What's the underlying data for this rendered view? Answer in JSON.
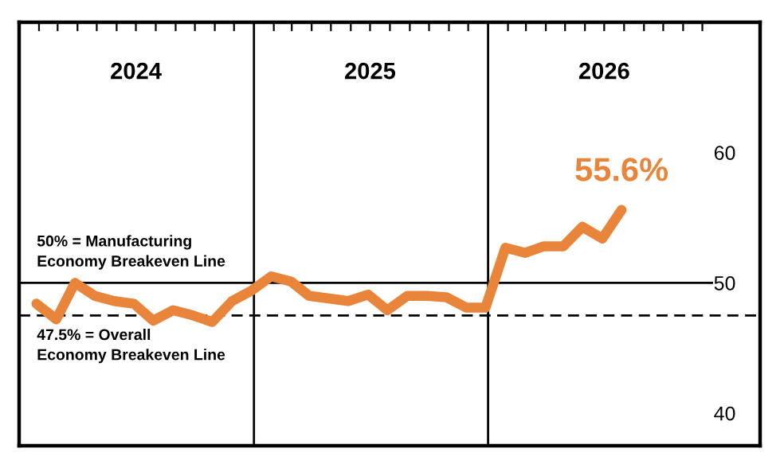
{
  "chart_data": {
    "type": "line",
    "x": [
      "2024-01-28",
      "2024-02-28",
      "2024-03-28",
      "2024-04-28",
      "2024-05-28",
      "2024-06-28",
      "2024-07-28",
      "2024-08-28",
      "2024-09-28",
      "2024-10-28",
      "2024-11-28",
      "2024-12-28",
      "2025-01-28",
      "2025-02-28",
      "2025-03-28",
      "2025-04-28",
      "2025-05-28",
      "2025-06-28",
      "2025-07-28",
      "2025-08-28",
      "2025-09-28",
      "2025-10-28",
      "2025-11-28",
      "2025-12-28",
      "2026-01-28",
      "2026-02-28",
      "2026-03-28",
      "2026-04-28",
      "2026-05-28",
      "2026-06-28",
      "2026-07-28"
    ],
    "series": [
      {
        "color": "#e8853a",
        "values": [
          48.4,
          47.2,
          50.0,
          49.0,
          48.6,
          48.4,
          47.1,
          47.9,
          47.5,
          47.0,
          48.6,
          49.4,
          50.5,
          50.1,
          49.0,
          48.8,
          48.6,
          49.1,
          47.9,
          49.0,
          49.0,
          48.9,
          48.1,
          48.1,
          52.7,
          52.3,
          52.8,
          52.8,
          54.3,
          53.4,
          55.6
        ],
        "value_labels": [
          null,
          null,
          null,
          null,
          null,
          null,
          null,
          null,
          null,
          null,
          null,
          null,
          null,
          null,
          null,
          null,
          null,
          null,
          null,
          null,
          null,
          null,
          null,
          null,
          null,
          null,
          null,
          null,
          null,
          null,
          "55.6%"
        ]
      }
    ],
    "xlim": [
      "2024-01-01",
      "2027-03-01"
    ],
    "xticks": [
      {
        "value": "2024-02-01",
        "label": null
      },
      {
        "value": "2024-03-01",
        "label": null
      },
      {
        "value": "2024-04-01",
        "label": null
      },
      {
        "value": "2024-05-01",
        "label": null
      },
      {
        "value": "2024-06-01",
        "label": null
      },
      {
        "value": "2024-07-01",
        "label": "2024"
      },
      {
        "value": "2024-08-01",
        "label": null
      },
      {
        "value": "2024-09-01",
        "label": null
      },
      {
        "value": "2024-10-01",
        "label": null
      },
      {
        "value": "2024-11-01",
        "label": null
      },
      {
        "value": "2024-12-01",
        "label": null
      },
      {
        "value": "2025-02-01",
        "label": null
      },
      {
        "value": "2025-03-01",
        "label": null
      },
      {
        "value": "2025-04-01",
        "label": null
      },
      {
        "value": "2025-05-01",
        "label": null
      },
      {
        "value": "2025-06-01",
        "label": null
      },
      {
        "value": "2025-07-01",
        "label": "2025"
      },
      {
        "value": "2025-08-01",
        "label": null
      },
      {
        "value": "2025-09-01",
        "label": null
      },
      {
        "value": "2025-10-01",
        "label": null
      },
      {
        "value": "2025-11-01",
        "label": null
      },
      {
        "value": "2025-12-01",
        "label": null
      },
      {
        "value": "2026-02-01",
        "label": null
      },
      {
        "value": "2026-03-01",
        "label": null
      },
      {
        "value": "2026-04-01",
        "label": null
      },
      {
        "value": "2026-05-01",
        "label": null
      },
      {
        "value": "2026-06-01",
        "label": null
      },
      {
        "value": "2026-07-01",
        "label": "2026"
      },
      {
        "value": "2026-08-01",
        "label": null
      },
      {
        "value": "2026-09-01",
        "label": null
      },
      {
        "value": "2026-10-01",
        "label": null
      },
      {
        "value": "2026-11-01",
        "label": null
      },
      {
        "value": "2026-12-01",
        "label": null
      }
    ],
    "ylim": [
      37.5,
      70
    ],
    "yticks": [
      40,
      50,
      60
    ],
    "ref_lines": [
      {
        "axis": "x",
        "value": "2025-01-01",
        "label": null,
        "color": "#000000",
        "line_style": "solid"
      },
      {
        "axis": "x",
        "value": "2026-01-01",
        "label": null,
        "color": "#000000",
        "line_style": "solid"
      },
      {
        "axis": "y",
        "value": 50,
        "label": "50% = Manufacturing\nEconomy Breakeven Line",
        "color": "#000000",
        "line_style": "solid"
      },
      {
        "axis": "y",
        "value": 47.5,
        "label": "47.5% = Overall\nEconomy Breakeven Line",
        "color": "#000000",
        "line_style": "dashed"
      }
    ],
    "grid": false,
    "legend": false,
    "marker": "none",
    "line_style": "solid"
  }
}
